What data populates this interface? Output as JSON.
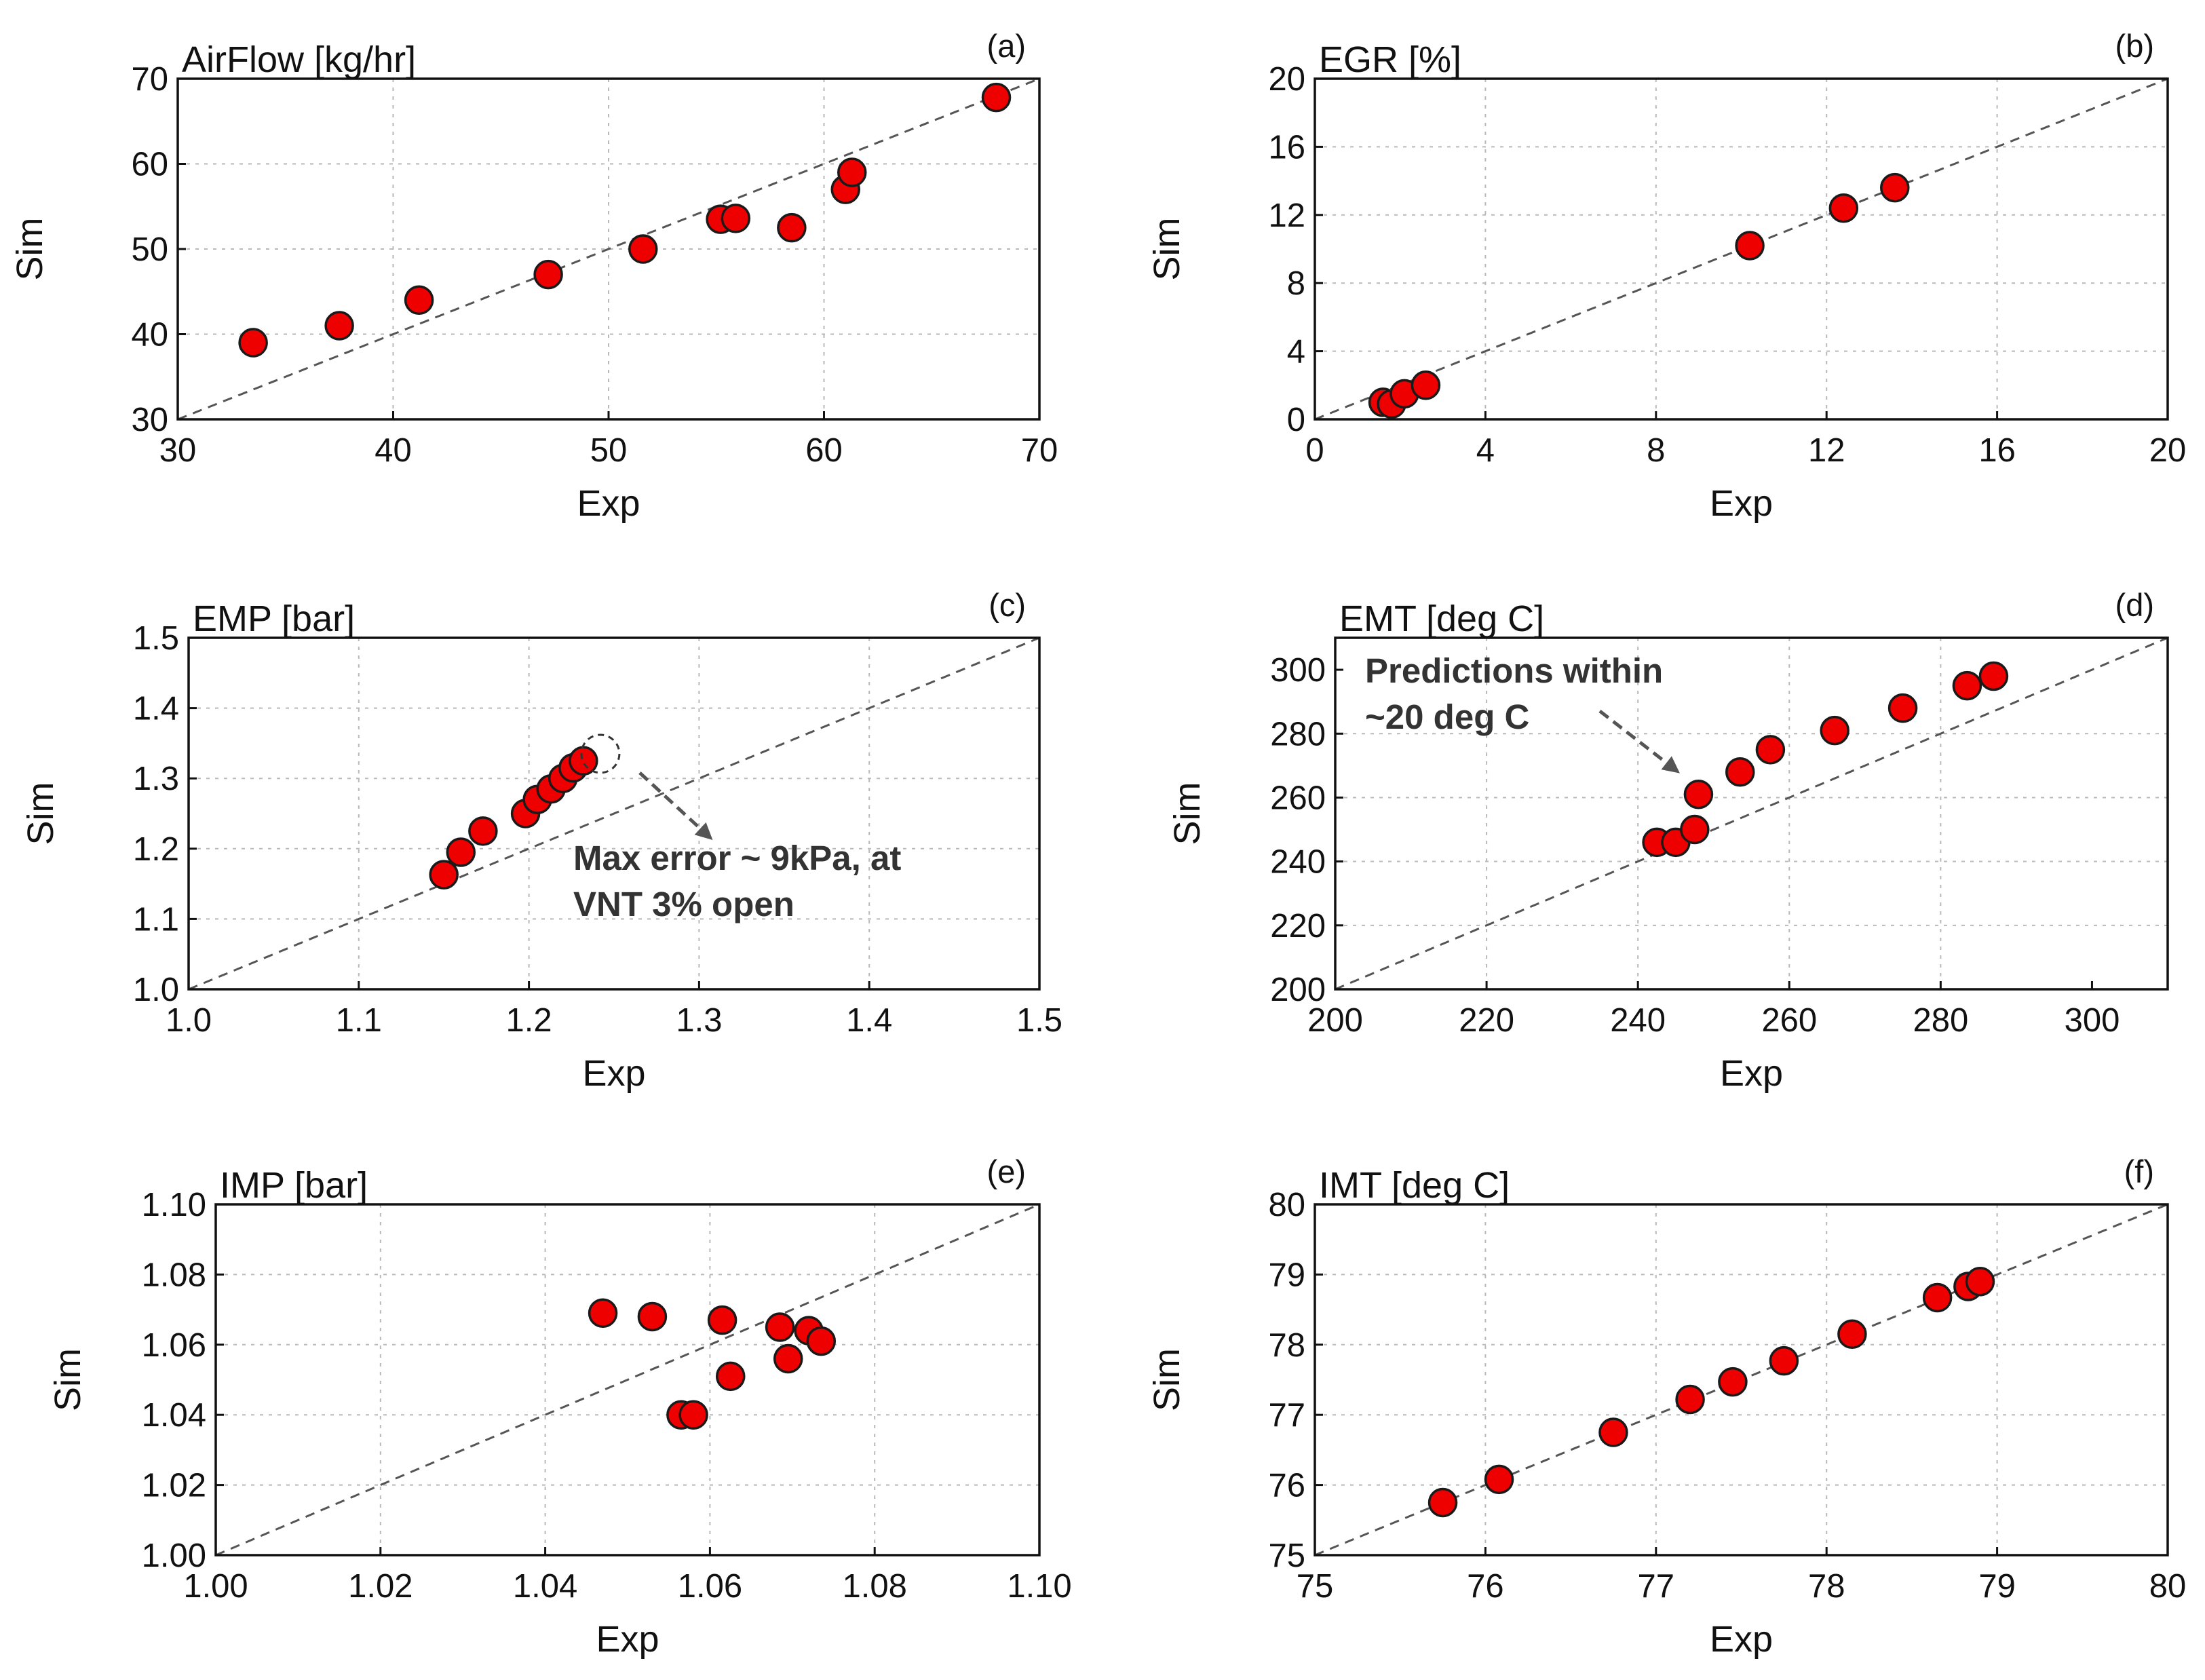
{
  "chart_data": [
    {
      "id": "a",
      "type": "scatter",
      "title": "AirFlow [kg/hr]",
      "panel_label": "(a)",
      "xlabel": "Exp",
      "ylabel": "Sim",
      "xlim": [
        30,
        70
      ],
      "ylim": [
        30,
        70
      ],
      "xticks": [
        30,
        40,
        50,
        60,
        70
      ],
      "yticks": [
        30,
        40,
        50,
        60,
        70
      ],
      "tick_labels_x": [
        "30",
        "40",
        "50",
        "60",
        "70"
      ],
      "tick_labels_y": [
        "30",
        "40",
        "50",
        "60",
        "70"
      ],
      "reference_line": "y = x (dashed)",
      "x": [
        33.5,
        37.5,
        41.2,
        47.2,
        51.6,
        55.2,
        55.9,
        58.5,
        61.0,
        61.3,
        68.0
      ],
      "y": [
        39.0,
        41.0,
        44.0,
        47.0,
        50.0,
        53.5,
        53.6,
        52.5,
        57.0,
        59.0,
        67.8
      ]
    },
    {
      "id": "b",
      "type": "scatter",
      "title": "EGR [%]",
      "panel_label": "(b)",
      "xlabel": "Exp",
      "ylabel": "Sim",
      "xlim": [
        0,
        20
      ],
      "ylim": [
        0,
        20
      ],
      "xticks": [
        0,
        4,
        8,
        12,
        16,
        20
      ],
      "yticks": [
        0,
        4,
        8,
        12,
        16,
        20
      ],
      "tick_labels_x": [
        "0",
        "4",
        "8",
        "12",
        "16",
        "20"
      ],
      "tick_labels_y": [
        "0",
        "4",
        "8",
        "12",
        "16",
        "20"
      ],
      "reference_line": "y = x (dashed)",
      "x": [
        1.6,
        1.8,
        2.1,
        2.6,
        10.2,
        12.4,
        13.6
      ],
      "y": [
        1.0,
        0.9,
        1.5,
        2.0,
        10.2,
        12.4,
        13.6
      ]
    },
    {
      "id": "c",
      "type": "scatter",
      "title": "EMP [bar]",
      "panel_label": "(c)",
      "xlabel": "Exp",
      "ylabel": "Sim",
      "xlim": [
        1.0,
        1.5
      ],
      "ylim": [
        1.0,
        1.5
      ],
      "xticks": [
        1.0,
        1.1,
        1.2,
        1.3,
        1.4,
        1.5
      ],
      "yticks": [
        1.0,
        1.1,
        1.2,
        1.3,
        1.4,
        1.5
      ],
      "tick_labels_x": [
        "1.0",
        "1.1",
        "1.2",
        "1.3",
        "1.4",
        "1.5"
      ],
      "tick_labels_y": [
        "1.0",
        "1.1",
        "1.2",
        "1.3",
        "1.4",
        "1.5"
      ],
      "reference_line": "y = x (dashed)",
      "x": [
        1.15,
        1.16,
        1.173,
        1.198,
        1.205,
        1.213,
        1.22,
        1.226,
        1.232
      ],
      "y": [
        1.163,
        1.195,
        1.225,
        1.25,
        1.27,
        1.285,
        1.3,
        1.315,
        1.325
      ],
      "highlight": {
        "x": 1.242,
        "y": 1.335
      },
      "annotation": [
        "Max error ~ 9kPa, at",
        "VNT 3% open"
      ]
    },
    {
      "id": "d",
      "type": "scatter",
      "title": "EMT [deg C]",
      "panel_label": "(d)",
      "xlabel": "Exp",
      "ylabel": "Sim",
      "xlim": [
        200,
        310
      ],
      "ylim": [
        200,
        310
      ],
      "xticks": [
        200,
        220,
        240,
        260,
        280,
        300
      ],
      "yticks": [
        200,
        220,
        240,
        260,
        280,
        300
      ],
      "tick_labels_x": [
        "200",
        "220",
        "240",
        "260",
        "280",
        "300"
      ],
      "tick_labels_y": [
        "200",
        "220",
        "240",
        "260",
        "280",
        "300"
      ],
      "reference_line": "y = x (dashed)",
      "x": [
        242.5,
        245.0,
        247.5,
        248.0,
        253.5,
        257.5,
        266.0,
        275.0,
        283.5,
        287.0
      ],
      "y": [
        246.0,
        246.0,
        250.0,
        261.0,
        268.0,
        275.0,
        281.0,
        288.0,
        295.0,
        298.0
      ],
      "annotation": [
        "Predictions  within",
        "~20 deg C"
      ]
    },
    {
      "id": "e",
      "type": "scatter",
      "title": "IMP [bar]",
      "panel_label": "(e)",
      "xlabel": "Exp",
      "ylabel": "Sim",
      "xlim": [
        1.0,
        1.1
      ],
      "ylim": [
        1.0,
        1.1
      ],
      "xticks": [
        1.0,
        1.02,
        1.04,
        1.06,
        1.08,
        1.1
      ],
      "yticks": [
        1.0,
        1.02,
        1.04,
        1.06,
        1.08,
        1.1
      ],
      "tick_labels_x": [
        "1.00",
        "1.02",
        "1.04",
        "1.06",
        "1.08",
        "1.10"
      ],
      "tick_labels_y": [
        "1.00",
        "1.02",
        "1.04",
        "1.06",
        "1.08",
        "1.10"
      ],
      "reference_line": "y = x (dashed)",
      "x": [
        1.047,
        1.053,
        1.0565,
        1.058,
        1.0615,
        1.0625,
        1.0685,
        1.0695,
        1.072,
        1.0735
      ],
      "y": [
        1.069,
        1.068,
        1.04,
        1.04,
        1.067,
        1.051,
        1.065,
        1.056,
        1.064,
        1.061
      ]
    },
    {
      "id": "f",
      "type": "scatter",
      "title": "IMT [deg C]",
      "panel_label": "(f)",
      "xlabel": "Exp",
      "ylabel": "Sim",
      "xlim": [
        75,
        80
      ],
      "ylim": [
        75,
        80
      ],
      "xticks": [
        75,
        76,
        77,
        78,
        79,
        80
      ],
      "yticks": [
        75,
        76,
        77,
        78,
        79,
        80
      ],
      "tick_labels_x": [
        "75",
        "76",
        "77",
        "78",
        "79",
        "80"
      ],
      "tick_labels_y": [
        "75",
        "76",
        "77",
        "78",
        "79",
        "80"
      ],
      "reference_line": "y = x (dashed)",
      "x": [
        75.75,
        76.08,
        76.75,
        77.2,
        77.45,
        77.75,
        78.15,
        78.65,
        78.83,
        78.9
      ],
      "y": [
        75.75,
        76.08,
        76.75,
        77.22,
        77.47,
        77.77,
        78.15,
        78.67,
        78.83,
        78.9
      ]
    }
  ],
  "colors": {
    "marker_fill": "#ee0000",
    "marker_edge": "#1a1a1a",
    "grid": "#b9b9b9",
    "reference_line": "#555555",
    "annotation_arrow": "#555555"
  }
}
